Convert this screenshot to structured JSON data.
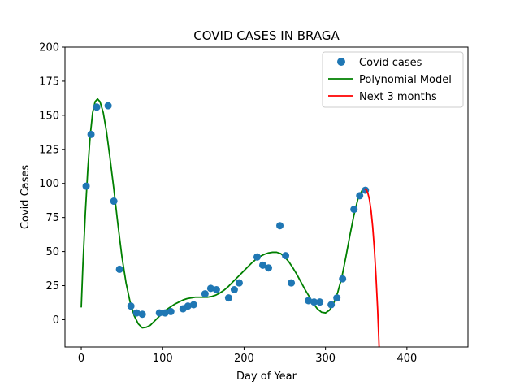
{
  "chart_data": {
    "type": "scatter",
    "title": "COVID CASES IN BRAGA",
    "xlabel": "Day of Year",
    "ylabel": "Covid Cases",
    "xlim": [
      -20,
      475
    ],
    "ylim": [
      -20,
      200
    ],
    "xticks": [
      0,
      100,
      200,
      300,
      400
    ],
    "yticks": [
      0,
      25,
      50,
      75,
      100,
      125,
      150,
      175,
      200
    ],
    "grid": false,
    "legend_position": "top-right",
    "colors": {
      "scatter": "#1f77b4",
      "model": "#008000",
      "forecast": "#ff0000"
    },
    "series": [
      {
        "name": "Covid cases",
        "kind": "scatter",
        "points": [
          [
            6,
            98
          ],
          [
            12,
            136
          ],
          [
            19,
            156
          ],
          [
            33,
            157
          ],
          [
            40,
            87
          ],
          [
            47,
            37
          ],
          [
            61,
            10
          ],
          [
            68,
            5
          ],
          [
            75,
            4
          ],
          [
            96,
            5
          ],
          [
            103,
            5
          ],
          [
            110,
            6
          ],
          [
            125,
            8
          ],
          [
            131,
            10
          ],
          [
            138,
            11
          ],
          [
            152,
            19
          ],
          [
            159,
            23
          ],
          [
            166,
            22
          ],
          [
            181,
            16
          ],
          [
            188,
            22
          ],
          [
            194,
            27
          ],
          [
            216,
            46
          ],
          [
            223,
            40
          ],
          [
            230,
            38
          ],
          [
            244,
            69
          ],
          [
            251,
            47
          ],
          [
            258,
            27
          ],
          [
            279,
            14
          ],
          [
            286,
            13
          ],
          [
            293,
            13
          ],
          [
            307,
            11
          ],
          [
            314,
            16
          ],
          [
            321,
            30
          ],
          [
            335,
            81
          ],
          [
            342,
            91
          ],
          [
            349,
            95
          ]
        ]
      },
      {
        "name": "Polynomial Model",
        "kind": "line",
        "points": [
          [
            0,
            9
          ],
          [
            2,
            40
          ],
          [
            5,
            78
          ],
          [
            8,
            110
          ],
          [
            11,
            135
          ],
          [
            14,
            152
          ],
          [
            17,
            160
          ],
          [
            20,
            162
          ],
          [
            23,
            160
          ],
          [
            27,
            152
          ],
          [
            31,
            138
          ],
          [
            35,
            120
          ],
          [
            40,
            96
          ],
          [
            45,
            70
          ],
          [
            50,
            46
          ],
          [
            55,
            27
          ],
          [
            60,
            13
          ],
          [
            65,
            3
          ],
          [
            70,
            -3
          ],
          [
            75,
            -6
          ],
          [
            80,
            -5.5
          ],
          [
            85,
            -4
          ],
          [
            90,
            -1
          ],
          [
            95,
            2
          ],
          [
            100,
            5
          ],
          [
            105,
            7.5
          ],
          [
            110,
            9.5
          ],
          [
            115,
            11.5
          ],
          [
            120,
            13
          ],
          [
            125,
            14.5
          ],
          [
            130,
            15.5
          ],
          [
            135,
            16
          ],
          [
            140,
            16.5
          ],
          [
            145,
            16.5
          ],
          [
            150,
            16.5
          ],
          [
            155,
            16.5
          ],
          [
            160,
            17
          ],
          [
            165,
            18
          ],
          [
            170,
            19.5
          ],
          [
            175,
            21.5
          ],
          [
            180,
            24
          ],
          [
            185,
            27
          ],
          [
            190,
            30
          ],
          [
            195,
            33
          ],
          [
            200,
            36
          ],
          [
            205,
            39
          ],
          [
            210,
            42
          ],
          [
            215,
            44.5
          ],
          [
            220,
            46.5
          ],
          [
            225,
            48
          ],
          [
            230,
            49
          ],
          [
            235,
            49.5
          ],
          [
            240,
            49.5
          ],
          [
            245,
            48.5
          ],
          [
            250,
            46
          ],
          [
            255,
            42.5
          ],
          [
            260,
            38
          ],
          [
            265,
            33
          ],
          [
            270,
            27.5
          ],
          [
            275,
            22
          ],
          [
            280,
            17
          ],
          [
            285,
            12
          ],
          [
            290,
            8
          ],
          [
            295,
            5.5
          ],
          [
            300,
            5
          ],
          [
            305,
            7
          ],
          [
            310,
            12
          ],
          [
            315,
            20
          ],
          [
            320,
            31
          ],
          [
            325,
            46
          ],
          [
            330,
            62
          ],
          [
            335,
            77
          ],
          [
            340,
            89
          ],
          [
            345,
            95
          ],
          [
            348,
            96
          ]
        ]
      },
      {
        "name": "Next 3 months",
        "kind": "line",
        "points": [
          [
            348,
            96
          ],
          [
            350,
            95.5
          ],
          [
            352,
            93
          ],
          [
            354,
            88
          ],
          [
            356,
            80
          ],
          [
            358,
            68
          ],
          [
            360,
            52
          ],
          [
            362,
            32
          ],
          [
            364,
            8
          ],
          [
            365,
            -7
          ],
          [
            366,
            -22
          ]
        ]
      }
    ]
  }
}
